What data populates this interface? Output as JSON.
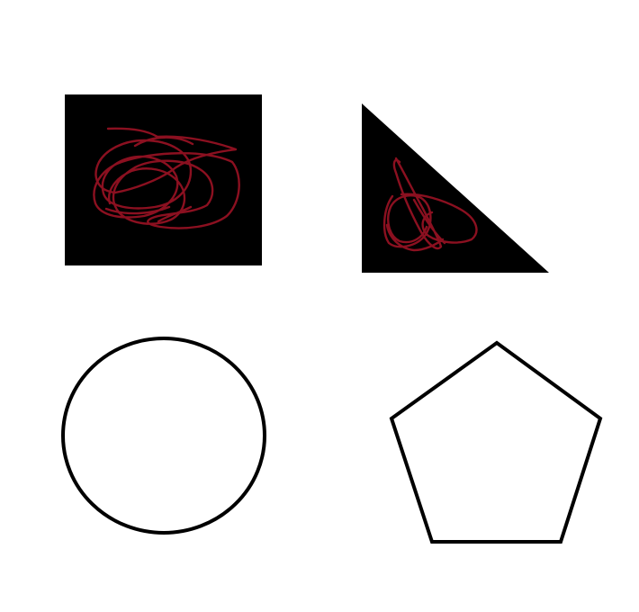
{
  "colors": {
    "background": "#ffffff",
    "shape_fill": "#000000",
    "outline": "#000000",
    "scribble": "#8b1020"
  },
  "shapes": [
    {
      "kind": "square",
      "style": "filled",
      "scribbled": true
    },
    {
      "kind": "right-triangle",
      "style": "filled",
      "scribbled": true
    },
    {
      "kind": "circle",
      "style": "outline",
      "scribbled": false
    },
    {
      "kind": "pentagon",
      "style": "outline",
      "scribbled": false
    }
  ]
}
